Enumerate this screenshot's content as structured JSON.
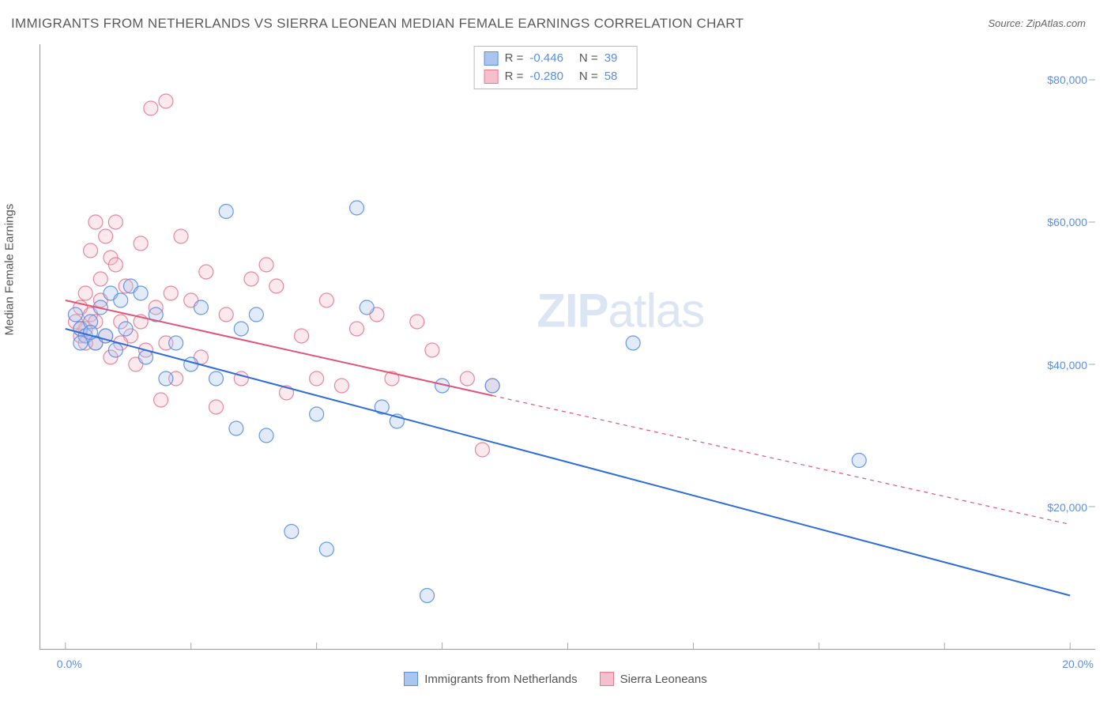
{
  "title": "IMMIGRANTS FROM NETHERLANDS VS SIERRA LEONEAN MEDIAN FEMALE EARNINGS CORRELATION CHART",
  "source": "Source: ZipAtlas.com",
  "y_axis_label": "Median Female Earnings",
  "watermark_bold": "ZIP",
  "watermark_light": "atlas",
  "chart": {
    "type": "scatter",
    "background_color": "#ffffff",
    "axis_color": "#999999",
    "tick_color": "#aaaaaa",
    "xlim": [
      -0.5,
      20.5
    ],
    "ylim": [
      0,
      85000
    ],
    "x_ticks": [
      0,
      2.5,
      5.0,
      7.5,
      10.0,
      12.5,
      15.0,
      17.5,
      20.0
    ],
    "x_tick_labels_shown": {
      "0": "0.0%",
      "20": "20.0%"
    },
    "y_ticks": [
      20000,
      40000,
      60000,
      80000
    ],
    "y_tick_labels": [
      "$20,000",
      "$40,000",
      "$60,000",
      "$80,000"
    ],
    "y_tick_label_color": "#5a8ee6",
    "x_tick_label_color": "#5a8ee6",
    "marker_radius": 9,
    "marker_opacity": 0.35,
    "marker_stroke_opacity": 0.9,
    "line_width": 2
  },
  "series": [
    {
      "name": "Immigrants from Netherlands",
      "fill_color": "#aac6ef",
      "stroke_color": "#5a8ee6",
      "line_color": "#2d6cd9",
      "R": "-0.446",
      "N": "39",
      "trend": {
        "x1": 0,
        "y1": 45000,
        "x2": 20,
        "y2": 7500,
        "solid_end_x": 20
      },
      "points": [
        [
          0.2,
          47000
        ],
        [
          0.3,
          45000
        ],
        [
          0.4,
          44000
        ],
        [
          0.5,
          46000
        ],
        [
          0.6,
          43000
        ],
        [
          0.7,
          48000
        ],
        [
          0.8,
          44000
        ],
        [
          0.9,
          50000
        ],
        [
          1.0,
          42000
        ],
        [
          1.1,
          49000
        ],
        [
          1.2,
          45000
        ],
        [
          1.3,
          51000
        ],
        [
          1.5,
          50000
        ],
        [
          1.6,
          41000
        ],
        [
          1.8,
          47000
        ],
        [
          2.0,
          38000
        ],
        [
          2.2,
          43000
        ],
        [
          2.5,
          40000
        ],
        [
          2.7,
          48000
        ],
        [
          3.0,
          38000
        ],
        [
          3.2,
          61500
        ],
        [
          3.4,
          31000
        ],
        [
          3.5,
          45000
        ],
        [
          3.8,
          47000
        ],
        [
          4.0,
          30000
        ],
        [
          4.5,
          16500
        ],
        [
          5.0,
          33000
        ],
        [
          5.2,
          14000
        ],
        [
          5.8,
          62000
        ],
        [
          6.0,
          48000
        ],
        [
          6.3,
          34000
        ],
        [
          6.6,
          32000
        ],
        [
          7.2,
          7500
        ],
        [
          7.5,
          37000
        ],
        [
          8.5,
          37000
        ],
        [
          11.3,
          43000
        ],
        [
          15.8,
          26500
        ],
        [
          0.3,
          43000
        ],
        [
          0.5,
          44500
        ]
      ]
    },
    {
      "name": "Sierra Leoneans",
      "fill_color": "#f5bfcb",
      "stroke_color": "#e67a94",
      "line_color": "#e05577",
      "R": "-0.280",
      "N": "58",
      "trend": {
        "x1": 0,
        "y1": 49000,
        "x2": 20,
        "y2": 17500,
        "solid_end_x": 8.5
      },
      "points": [
        [
          0.2,
          46000
        ],
        [
          0.3,
          48000
        ],
        [
          0.3,
          44000
        ],
        [
          0.4,
          50000
        ],
        [
          0.4,
          45000
        ],
        [
          0.5,
          47000
        ],
        [
          0.5,
          56000
        ],
        [
          0.6,
          43000
        ],
        [
          0.6,
          60000
        ],
        [
          0.7,
          49000
        ],
        [
          0.7,
          52000
        ],
        [
          0.8,
          44000
        ],
        [
          0.8,
          58000
        ],
        [
          0.9,
          41000
        ],
        [
          0.9,
          55000
        ],
        [
          1.0,
          60000
        ],
        [
          1.0,
          54000
        ],
        [
          1.1,
          46000
        ],
        [
          1.2,
          51000
        ],
        [
          1.3,
          44000
        ],
        [
          1.4,
          40000
        ],
        [
          1.5,
          57000
        ],
        [
          1.6,
          42000
        ],
        [
          1.7,
          76000
        ],
        [
          1.8,
          48000
        ],
        [
          1.9,
          35000
        ],
        [
          2.0,
          77000
        ],
        [
          2.1,
          50000
        ],
        [
          2.2,
          38000
        ],
        [
          2.3,
          58000
        ],
        [
          2.5,
          49000
        ],
        [
          2.7,
          41000
        ],
        [
          2.8,
          53000
        ],
        [
          3.0,
          34000
        ],
        [
          3.2,
          47000
        ],
        [
          3.5,
          38000
        ],
        [
          3.7,
          52000
        ],
        [
          4.0,
          54000
        ],
        [
          4.2,
          51000
        ],
        [
          4.4,
          36000
        ],
        [
          4.7,
          44000
        ],
        [
          5.0,
          38000
        ],
        [
          5.2,
          49000
        ],
        [
          5.5,
          37000
        ],
        [
          5.8,
          45000
        ],
        [
          6.2,
          47000
        ],
        [
          6.5,
          38000
        ],
        [
          7.0,
          46000
        ],
        [
          7.3,
          42000
        ],
        [
          8.0,
          38000
        ],
        [
          8.3,
          28000
        ],
        [
          8.5,
          37000
        ],
        [
          0.3,
          45000
        ],
        [
          0.4,
          43000
        ],
        [
          0.6,
          46000
        ],
        [
          1.1,
          43000
        ],
        [
          1.5,
          46000
        ],
        [
          2.0,
          43000
        ]
      ]
    }
  ],
  "stat_legend": {
    "R_label": "R =",
    "N_label": "N ="
  },
  "bottom_legend_labels": [
    "Immigrants from Netherlands",
    "Sierra Leoneans"
  ]
}
